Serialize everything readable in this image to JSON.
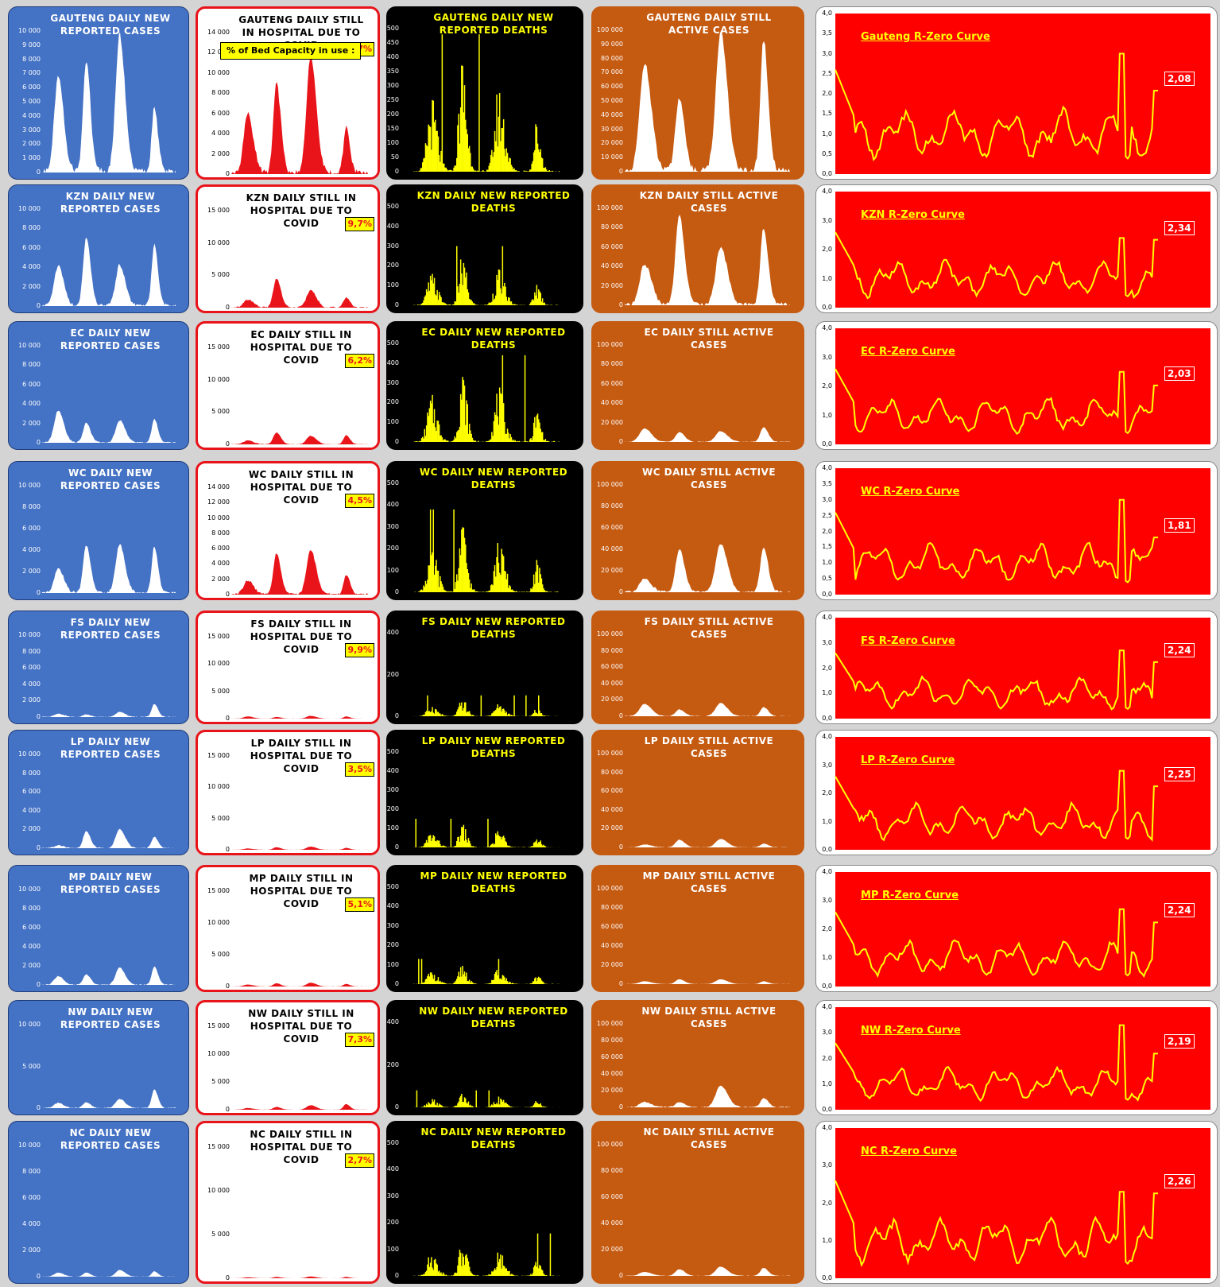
{
  "bed_label": "% of Bed Capacity in use :",
  "rows": [
    {
      "cases_title": "GAUTENG DAILY NEW REPORTED CASES",
      "cases_ticks": [
        "10 000",
        "9 000",
        "8 000",
        "7 000",
        "6 000",
        "5 000",
        "4 000",
        "3 000",
        "2 000",
        "1 000",
        "0"
      ],
      "hosp_title": "GAUTENG DAILY STILL IN HOSPITAL DUE TO COVID",
      "hosp_ticks": [
        "14 000",
        "12 000",
        "10 000",
        "8 000",
        "6 000",
        "4 000",
        "2 000",
        "0"
      ],
      "bed": "10,7%",
      "deaths_title": "GAUTENG DAILY NEW REPORTED DEATHS",
      "deaths_ticks": [
        "500",
        "450",
        "400",
        "350",
        "300",
        "250",
        "200",
        "150",
        "100",
        "50",
        "0"
      ],
      "active_title": "GAUTENG DAILY STILL ACTIVE CASES",
      "active_ticks": [
        "100 000",
        "90 000",
        "80 000",
        "70 000",
        "60 000",
        "50 000",
        "40 000",
        "30 000",
        "20 000",
        "10 000",
        "0"
      ],
      "r_title": "Gauteng R-Zero Curve",
      "r_ticks": [
        "4,0",
        "3,5",
        "3,0",
        "2,5",
        "2,0",
        "1,5",
        "1,0",
        "0,5",
        "0,0"
      ],
      "r_value": "2,08"
    },
    {
      "cases_title": "KZN DAILY NEW REPORTED CASES",
      "cases_ticks": [
        "10 000",
        "8 000",
        "6 000",
        "4 000",
        "2 000",
        "0"
      ],
      "hosp_title": "KZN DAILY STILL IN HOSPITAL DUE TO COVID",
      "hosp_ticks": [
        "15 000",
        "10 000",
        "5 000",
        "0"
      ],
      "bed": "9,7%",
      "deaths_title": "KZN DAILY NEW REPORTED DEATHS",
      "deaths_ticks": [
        "500",
        "400",
        "300",
        "200",
        "100",
        "0"
      ],
      "active_title": "KZN DAILY STILL ACTIVE CASES",
      "active_ticks": [
        "100 000",
        "80 000",
        "60 000",
        "40 000",
        "20 000",
        "0"
      ],
      "r_title": "KZN R-Zero Curve",
      "r_ticks": [
        "4,0",
        "3,0",
        "2,0",
        "1,0",
        "0,0"
      ],
      "r_value": "2,34"
    },
    {
      "cases_title": "EC DAILY NEW REPORTED CASES",
      "cases_ticks": [
        "10 000",
        "8 000",
        "6 000",
        "4 000",
        "2 000",
        "0"
      ],
      "hosp_title": "EC DAILY STILL IN HOSPITAL DUE TO COVID",
      "hosp_ticks": [
        "15 000",
        "10 000",
        "5 000",
        "0"
      ],
      "bed": "6,2%",
      "deaths_title": "EC DAILY NEW REPORTED DEATHS",
      "deaths_ticks": [
        "500",
        "400",
        "300",
        "200",
        "100",
        "0"
      ],
      "active_title": "EC DAILY STILL ACTIVE CASES",
      "active_ticks": [
        "100 000",
        "80 000",
        "60 000",
        "40 000",
        "20 000",
        "0"
      ],
      "r_title": "EC R-Zero Curve",
      "r_ticks": [
        "4,0",
        "3,0",
        "2,0",
        "1,0",
        "0,0"
      ],
      "r_value": "2,03"
    },
    {
      "cases_title": "WC DAILY NEW REPORTED CASES",
      "cases_ticks": [
        "10 000",
        "8 000",
        "6 000",
        "4 000",
        "2 000",
        "0"
      ],
      "hosp_title": "WC DAILY STILL IN HOSPITAL DUE TO COVID",
      "hosp_ticks": [
        "14 000",
        "12 000",
        "10 000",
        "8 000",
        "6 000",
        "4 000",
        "2 000",
        "0"
      ],
      "bed": "4,5%",
      "deaths_title": "WC DAILY NEW REPORTED DEATHS",
      "deaths_ticks": [
        "500",
        "400",
        "300",
        "200",
        "100",
        "0"
      ],
      "active_title": "WC DAILY STILL ACTIVE CASES",
      "active_ticks": [
        "100 000",
        "80 000",
        "60 000",
        "40 000",
        "20 000",
        "0"
      ],
      "r_title": "WC R-Zero Curve",
      "r_ticks": [
        "4,0",
        "3,5",
        "3,0",
        "2,5",
        "2,0",
        "1,5",
        "1,0",
        "0,5",
        "0,0"
      ],
      "r_value": "1,81"
    },
    {
      "cases_title": "FS DAILY NEW REPORTED CASES",
      "cases_ticks": [
        "10 000",
        "8 000",
        "6 000",
        "4 000",
        "2 000",
        "0"
      ],
      "hosp_title": "FS DAILY STILL IN HOSPITAL DUE TO COVID",
      "hosp_ticks": [
        "15 000",
        "10 000",
        "5 000",
        "0"
      ],
      "bed": "9,9%",
      "deaths_title": "FS DAILY NEW REPORTED DEATHS",
      "deaths_ticks": [
        "400",
        "200",
        "0"
      ],
      "active_title": "FS DAILY STILL ACTIVE CASES",
      "active_ticks": [
        "100 000",
        "80 000",
        "60 000",
        "40 000",
        "20 000",
        "0"
      ],
      "r_title": "FS R-Zero Curve",
      "r_ticks": [
        "4,0",
        "3,0",
        "2,0",
        "1,0",
        "0,0"
      ],
      "r_value": "2,24"
    },
    {
      "cases_title": "LP DAILY NEW REPORTED CASES",
      "cases_ticks": [
        "10 000",
        "8 000",
        "6 000",
        "4 000",
        "2 000",
        "0"
      ],
      "hosp_title": "LP DAILY STILL IN HOSPITAL DUE TO COVID",
      "hosp_ticks": [
        "15 000",
        "10 000",
        "5 000",
        "0"
      ],
      "bed": "3,5%",
      "deaths_title": "LP DAILY NEW REPORTED DEATHS",
      "deaths_ticks": [
        "500",
        "400",
        "300",
        "200",
        "100",
        "0"
      ],
      "active_title": "LP DAILY STILL ACTIVE CASES",
      "active_ticks": [
        "100 000",
        "80 000",
        "60 000",
        "40 000",
        "20 000",
        "0"
      ],
      "r_title": "LP R-Zero Curve",
      "r_ticks": [
        "4,0",
        "3,0",
        "2,0",
        "1,0",
        "0,0"
      ],
      "r_value": "2,25"
    },
    {
      "cases_title": "MP DAILY NEW REPORTED CASES",
      "cases_ticks": [
        "10 000",
        "8 000",
        "6 000",
        "4 000",
        "2 000",
        "0"
      ],
      "hosp_title": "MP DAILY STILL IN HOSPITAL DUE TO COVID",
      "hosp_ticks": [
        "15 000",
        "10 000",
        "5 000",
        "0"
      ],
      "bed": "5,1%",
      "deaths_title": "MP DAILY NEW REPORTED DEATHS",
      "deaths_ticks": [
        "500",
        "400",
        "300",
        "200",
        "100",
        "0"
      ],
      "active_title": "MP DAILY STILL ACTIVE CASES",
      "active_ticks": [
        "100 000",
        "80 000",
        "60 000",
        "40 000",
        "20 000",
        "0"
      ],
      "r_title": "MP R-Zero Curve",
      "r_ticks": [
        "4,0",
        "3,0",
        "2,0",
        "1,0",
        "0,0"
      ],
      "r_value": "2,24"
    },
    {
      "cases_title": "NW DAILY NEW REPORTED CASES",
      "cases_ticks": [
        "10 000",
        "5 000",
        "0"
      ],
      "hosp_title": "NW DAILY STILL IN HOSPITAL DUE TO COVID",
      "hosp_ticks": [
        "15 000",
        "10 000",
        "5 000",
        "0"
      ],
      "bed": "7,3%",
      "deaths_title": "NW DAILY NEW REPORTED DEATHS",
      "deaths_ticks": [
        "400",
        "200",
        "0"
      ],
      "active_title": "NW DAILY STILL ACTIVE CASES",
      "active_ticks": [
        "100 000",
        "80 000",
        "60 000",
        "40 000",
        "20 000",
        "0"
      ],
      "r_title": "NW R-Zero Curve",
      "r_ticks": [
        "4,0",
        "3,0",
        "2,0",
        "1,0",
        "0,0"
      ],
      "r_value": "2,19"
    },
    {
      "cases_title": "NC DAILY NEW REPORTED CASES",
      "cases_ticks": [
        "10 000",
        "8 000",
        "6 000",
        "4 000",
        "2 000",
        "0"
      ],
      "hosp_title": "NC DAILY STILL IN HOSPITAL DUE TO COVID",
      "hosp_ticks": [
        "15 000",
        "10 000",
        "5 000",
        "0"
      ],
      "bed": "2,7%",
      "deaths_title": "NC DAILY NEW REPORTED DEATHS",
      "deaths_ticks": [
        "500",
        "400",
        "300",
        "200",
        "100",
        "0"
      ],
      "active_title": "NC DAILY STILL ACTIVE CASES",
      "active_ticks": [
        "100 000",
        "80 000",
        "60 000",
        "40 000",
        "20 000",
        "0"
      ],
      "r_title": "NC R-Zero Curve",
      "r_ticks": [
        "4,0",
        "3,0",
        "2,0",
        "1,0",
        "0,0"
      ],
      "r_value": "2,26"
    }
  ],
  "chart_data": [
    {
      "type": "area",
      "group": "Daily new reported cases",
      "province": [
        "GAUTENG",
        "KZN",
        "EC",
        "WC",
        "FS",
        "LP",
        "MP",
        "NW",
        "NC"
      ],
      "wave_peaks": [
        [
          6600,
          7800,
          9700,
          4500
        ],
        [
          4100,
          7000,
          4200,
          6300
        ],
        [
          3300,
          2000,
          2300,
          2400
        ],
        [
          2300,
          4400,
          4500,
          4300
        ],
        [
          400,
          300,
          600,
          1600
        ],
        [
          300,
          1800,
          2000,
          1200
        ],
        [
          900,
          1100,
          1800,
          1900
        ],
        [
          600,
          700,
          1100,
          2200
        ],
        [
          300,
          300,
          500,
          400
        ]
      ],
      "ylim": [
        [
          0,
          10000
        ],
        [
          0,
          10000
        ],
        [
          0,
          10000
        ],
        [
          0,
          10000
        ],
        [
          0,
          10000
        ],
        [
          0,
          10000
        ],
        [
          0,
          10000
        ],
        [
          0,
          10000
        ],
        [
          0,
          10000
        ]
      ]
    },
    {
      "type": "area",
      "group": "Daily still in hospital",
      "province": [
        "GAUTENG",
        "KZN",
        "EC",
        "WC",
        "FS",
        "LP",
        "MP",
        "NW",
        "NC"
      ],
      "wave_peaks": [
        [
          5800,
          8800,
          11500,
          4500
        ],
        [
          1200,
          4500,
          2700,
          1500
        ],
        [
          600,
          1800,
          1300,
          1400
        ],
        [
          1800,
          5300,
          5800,
          2500
        ],
        [
          400,
          300,
          500,
          400
        ],
        [
          200,
          400,
          500,
          300
        ],
        [
          300,
          500,
          600,
          400
        ],
        [
          300,
          500,
          800,
          1000
        ],
        [
          100,
          150,
          200,
          150
        ]
      ],
      "ylim": [
        [
          0,
          14000
        ],
        [
          0,
          15000
        ],
        [
          0,
          15000
        ],
        [
          0,
          14000
        ],
        [
          0,
          15000
        ],
        [
          0,
          15000
        ],
        [
          0,
          15000
        ],
        [
          0,
          15000
        ],
        [
          0,
          15000
        ]
      ],
      "bed_capacity_in_use": [
        "10,7%",
        "9,7%",
        "6,2%",
        "4,5%",
        "9,9%",
        "3,5%",
        "5,1%",
        "7,3%",
        "2,7%"
      ]
    },
    {
      "type": "bar",
      "group": "Daily new reported deaths",
      "province": [
        "GAUTENG",
        "KZN",
        "EC",
        "WC",
        "FS",
        "LP",
        "MP",
        "NW",
        "NC"
      ],
      "max_values": [
        480,
        300,
        440,
        380,
        100,
        150,
        130,
        80,
        160
      ],
      "ylim": [
        [
          0,
          500
        ],
        [
          0,
          500
        ],
        [
          0,
          500
        ],
        [
          0,
          500
        ],
        [
          0,
          400
        ],
        [
          0,
          500
        ],
        [
          0,
          500
        ],
        [
          0,
          400
        ],
        [
          0,
          500
        ]
      ]
    },
    {
      "type": "area",
      "group": "Daily still active cases",
      "province": [
        "GAUTENG",
        "KZN",
        "EC",
        "WC",
        "FS",
        "LP",
        "MP",
        "NW",
        "NC"
      ],
      "wave_peaks": [
        [
          76000,
          51000,
          98000,
          93000
        ],
        [
          42000,
          92000,
          60000,
          80000
        ],
        [
          14000,
          10000,
          11000,
          15000
        ],
        [
          12000,
          40000,
          45000,
          42000
        ],
        [
          15000,
          8000,
          16000,
          11000
        ],
        [
          3000,
          8000,
          9000,
          4000
        ],
        [
          3000,
          5000,
          5000,
          3000
        ],
        [
          6000,
          6000,
          26000,
          11000
        ],
        [
          3000,
          5000,
          7000,
          6000
        ]
      ],
      "ylim": [
        [
          0,
          100000
        ],
        [
          0,
          100000
        ],
        [
          0,
          100000
        ],
        [
          0,
          100000
        ],
        [
          0,
          100000
        ],
        [
          0,
          100000
        ],
        [
          0,
          100000
        ],
        [
          0,
          100000
        ],
        [
          0,
          100000
        ]
      ]
    },
    {
      "type": "line",
      "group": "R-Zero Curve",
      "province": [
        "Gauteng",
        "KZN",
        "EC",
        "WC",
        "FS",
        "LP",
        "MP",
        "NW",
        "NC"
      ],
      "latest_value": [
        2.08,
        2.34,
        2.03,
        1.81,
        2.24,
        2.25,
        2.24,
        2.19,
        2.26
      ],
      "peak_value": [
        3.0,
        2.4,
        2.5,
        3.0,
        2.7,
        2.8,
        2.7,
        3.3,
        2.3
      ],
      "ylim": [
        [
          0,
          4
        ],
        [
          0,
          4
        ],
        [
          0,
          4
        ],
        [
          0,
          4
        ],
        [
          0,
          4
        ],
        [
          0,
          4
        ],
        [
          0,
          4
        ],
        [
          0,
          4
        ],
        [
          0,
          4
        ]
      ]
    }
  ]
}
